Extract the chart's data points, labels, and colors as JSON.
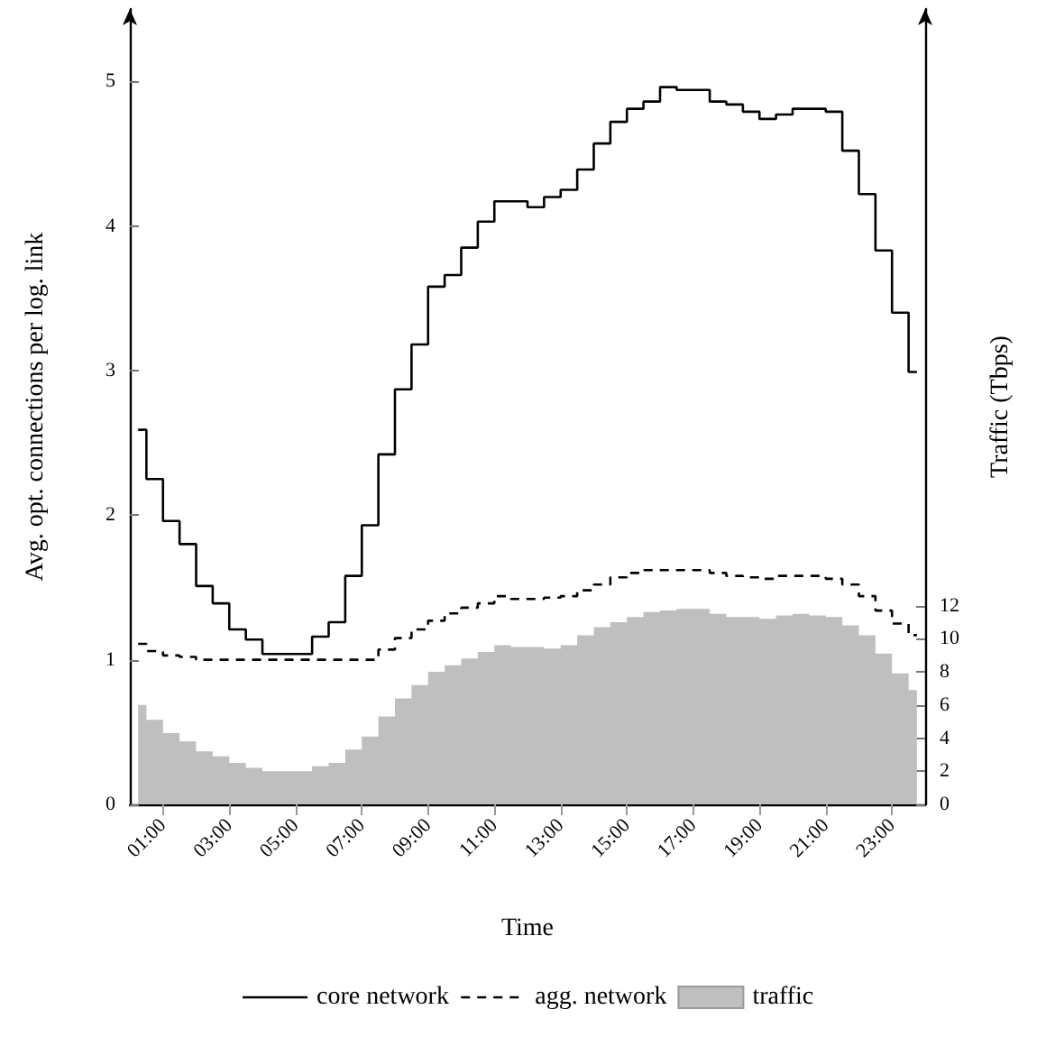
{
  "chart_data": {
    "type": "step",
    "xlabel": "Time",
    "ylabel": "Avg. opt. connections per log. link",
    "y2label": "Traffic (Tbps)",
    "x": [
      0.25,
      0.75,
      1.25,
      1.75,
      2.25,
      2.75,
      3.25,
      3.75,
      4.25,
      4.75,
      5.25,
      5.75,
      6.25,
      6.75,
      7.25,
      7.75,
      8.25,
      8.75,
      9.25,
      9.75,
      10.25,
      10.75,
      11.25,
      11.75,
      12.25,
      12.75,
      13.25,
      13.75,
      14.25,
      14.75,
      15.25,
      15.75,
      16.25,
      16.75,
      17.25,
      17.75,
      18.25,
      18.75,
      19.25,
      19.75,
      20.25,
      20.75,
      21.25,
      21.75,
      22.25,
      22.75,
      23.25,
      23.75
    ],
    "xlim": [
      0,
      24
    ],
    "xticks": [
      {
        "value": 1,
        "label": "01:00"
      },
      {
        "value": 3,
        "label": "03:00"
      },
      {
        "value": 5,
        "label": "05:00"
      },
      {
        "value": 7,
        "label": "07:00"
      },
      {
        "value": 9,
        "label": "09:00"
      },
      {
        "value": 11,
        "label": "11:00"
      },
      {
        "value": 13,
        "label": "13:00"
      },
      {
        "value": 15,
        "label": "15:00"
      },
      {
        "value": 17,
        "label": "17:00"
      },
      {
        "value": 19,
        "label": "19:00"
      },
      {
        "value": 21,
        "label": "21:00"
      },
      {
        "value": 23,
        "label": "23:00"
      }
    ],
    "ylim": [
      0,
      5.5
    ],
    "yticks": [
      0,
      1,
      2,
      3,
      4,
      5
    ],
    "y2lim": [
      0,
      48
    ],
    "y2ticks": [
      0,
      2,
      4,
      6,
      8,
      10,
      12
    ],
    "grid": false,
    "legend": "bottom",
    "marker": "none",
    "series": [
      {
        "name": "core network",
        "color": "#000000",
        "line_style": "solid",
        "values": [
          2.59,
          2.25,
          1.96,
          1.8,
          1.51,
          1.39,
          1.21,
          1.14,
          1.04,
          1.04,
          1.04,
          1.16,
          1.26,
          1.58,
          1.93,
          2.42,
          2.87,
          3.18,
          3.58,
          3.66,
          3.85,
          4.03,
          4.17,
          4.17,
          4.13,
          4.2,
          4.25,
          4.39,
          4.57,
          4.72,
          4.81,
          4.86,
          4.96,
          4.94,
          4.94,
          4.86,
          4.84,
          4.79,
          4.74,
          4.77,
          4.81,
          4.81,
          4.79,
          4.52,
          4.22,
          3.83,
          3.4,
          2.99
        ]
      },
      {
        "name": "agg. network",
        "color": "#000000",
        "line_style": "dashed",
        "values": [
          1.11,
          1.06,
          1.03,
          1.02,
          1.0,
          1.0,
          1.0,
          1.0,
          1.0,
          1.0,
          1.0,
          1.0,
          1.0,
          1.0,
          1.0,
          1.07,
          1.15,
          1.21,
          1.27,
          1.32,
          1.36,
          1.39,
          1.44,
          1.42,
          1.42,
          1.43,
          1.44,
          1.48,
          1.52,
          1.57,
          1.6,
          1.62,
          1.62,
          1.62,
          1.62,
          1.6,
          1.58,
          1.57,
          1.56,
          1.58,
          1.58,
          1.58,
          1.56,
          1.52,
          1.44,
          1.34,
          1.25,
          1.17
        ]
      },
      {
        "name": "traffic",
        "type": "area",
        "axis": "y2",
        "color": "#bfbfbf",
        "values": [
          6.0,
          5.1,
          4.3,
          3.8,
          3.2,
          2.9,
          2.5,
          2.2,
          2.0,
          2.0,
          2.0,
          2.3,
          2.5,
          3.3,
          4.1,
          5.3,
          6.4,
          7.2,
          8.0,
          8.4,
          8.8,
          9.2,
          9.6,
          9.5,
          9.5,
          9.4,
          9.6,
          10.2,
          10.7,
          11.0,
          11.3,
          11.6,
          11.7,
          11.8,
          11.8,
          11.5,
          11.3,
          11.3,
          11.2,
          11.4,
          11.5,
          11.4,
          11.3,
          10.8,
          10.2,
          9.1,
          7.9,
          6.9
        ]
      }
    ]
  }
}
